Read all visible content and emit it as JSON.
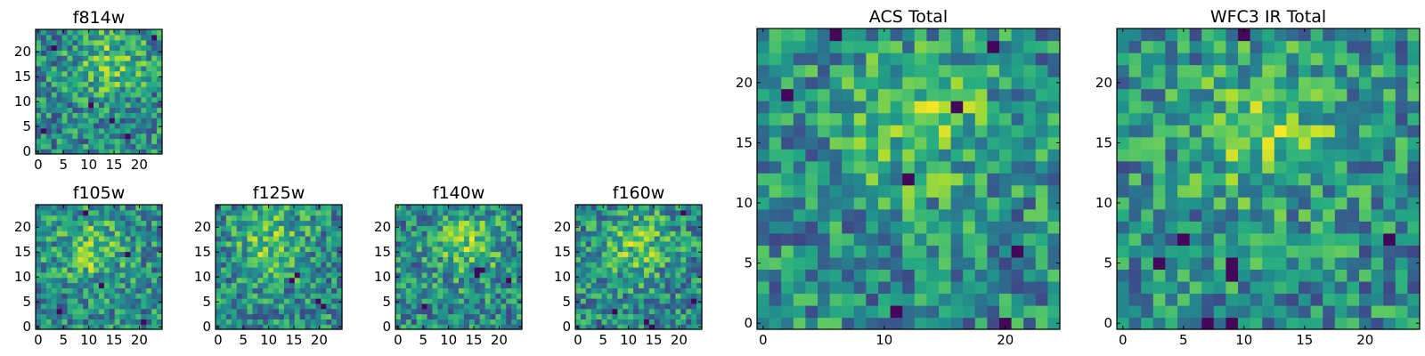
{
  "figure": {
    "colormap": "viridis",
    "colors": {
      "viridis_stops": [
        "#440154",
        "#472d7b",
        "#3b528b",
        "#2c728e",
        "#21918c",
        "#28ae80",
        "#5ec962",
        "#addc30",
        "#fde725"
      ]
    }
  },
  "chart_data": [
    {
      "id": "f814w",
      "type": "heatmap",
      "title": "f814w",
      "grid_size": 24,
      "seed": 814,
      "x_ticks": [
        "0",
        "5",
        "10",
        "15",
        "20"
      ],
      "y_ticks": [
        "0",
        "5",
        "10",
        "15",
        "20"
      ],
      "xlim": [
        -0.5,
        24.5
      ],
      "ylim": [
        -0.5,
        24.5
      ],
      "bright_region": {
        "x": 14,
        "y": 17
      },
      "dark_pixels": [
        [
          3,
          20
        ],
        [
          14,
          6
        ],
        [
          17,
          3
        ],
        [
          22,
          22
        ],
        [
          10,
          9
        ],
        [
          1,
          4
        ]
      ]
    },
    {
      "id": "f105w",
      "type": "heatmap",
      "title": "f105w",
      "grid_size": 24,
      "seed": 105,
      "x_ticks": [
        "0",
        "5",
        "10",
        "15",
        "20"
      ],
      "y_ticks": [
        "0",
        "5",
        "10",
        "15",
        "20"
      ],
      "xlim": [
        -0.5,
        24.5
      ],
      "ylim": [
        -0.5,
        24.5
      ],
      "bright_region": {
        "x": 10,
        "y": 15
      },
      "dark_pixels": [
        [
          9,
          22
        ],
        [
          17,
          14
        ],
        [
          12,
          8
        ],
        [
          20,
          1
        ],
        [
          4,
          3
        ]
      ]
    },
    {
      "id": "f125w",
      "type": "heatmap",
      "title": "f125w",
      "grid_size": 24,
      "seed": 125,
      "x_ticks": [
        "0",
        "5",
        "10",
        "15",
        "20"
      ],
      "y_ticks": [
        "0",
        "5",
        "10",
        "15",
        "20"
      ],
      "xlim": [
        -0.5,
        24.5
      ],
      "ylim": [
        -0.5,
        24.5
      ],
      "bright_region": {
        "x": 10,
        "y": 16
      },
      "dark_pixels": [
        [
          14,
          9
        ],
        [
          19,
          5
        ],
        [
          20,
          4
        ],
        [
          15,
          10
        ]
      ]
    },
    {
      "id": "f140w",
      "type": "heatmap",
      "title": "f140w",
      "grid_size": 24,
      "seed": 140,
      "x_ticks": [
        "0",
        "5",
        "10",
        "15",
        "20"
      ],
      "y_ticks": [
        "0",
        "5",
        "10",
        "15",
        "20"
      ],
      "xlim": [
        -0.5,
        24.5
      ],
      "ylim": [
        -0.5,
        24.5
      ],
      "bright_region": {
        "x": 13,
        "y": 16
      },
      "dark_pixels": [
        [
          15,
          10
        ],
        [
          16,
          11
        ],
        [
          15,
          11
        ],
        [
          5,
          4
        ],
        [
          21,
          9
        ]
      ]
    },
    {
      "id": "f160w",
      "type": "heatmap",
      "title": "f160w",
      "grid_size": 24,
      "seed": 160,
      "x_ticks": [
        "0",
        "5",
        "10",
        "15",
        "20"
      ],
      "y_ticks": [
        "0",
        "5",
        "10",
        "15",
        "20"
      ],
      "xlim": [
        -0.5,
        24.5
      ],
      "ylim": [
        -0.5,
        24.5
      ],
      "bright_region": {
        "x": 11,
        "y": 16
      },
      "dark_pixels": [
        [
          13,
          1
        ],
        [
          14,
          0
        ],
        [
          22,
          5
        ],
        [
          20,
          22
        ],
        [
          7,
          3
        ]
      ]
    },
    {
      "id": "acs_total",
      "type": "heatmap",
      "title": "ACS Total",
      "grid_size": 25,
      "seed": 8140,
      "x_ticks": [
        "0",
        "10",
        "20"
      ],
      "y_ticks": [
        "0",
        "5",
        "10",
        "15",
        "20"
      ],
      "xlim": [
        -0.5,
        24.5
      ],
      "ylim": [
        -0.5,
        24.5
      ],
      "bright_region": {
        "x": 13,
        "y": 17
      },
      "dark_pixels": [
        [
          6,
          24
        ],
        [
          2,
          19
        ],
        [
          12,
          12
        ],
        [
          11,
          1
        ],
        [
          19,
          23
        ],
        [
          16,
          18
        ],
        [
          20,
          0
        ],
        [
          21,
          6
        ]
      ]
    },
    {
      "id": "wfc3_ir_total",
      "type": "heatmap",
      "title": "WFC3 IR Total",
      "grid_size": 25,
      "seed": 1234,
      "x_ticks": [
        "0",
        "5",
        "10",
        "15",
        "20"
      ],
      "y_ticks": [
        "0",
        "5",
        "10",
        "15",
        "20"
      ],
      "xlim": [
        -0.5,
        24.5
      ],
      "ylim": [
        -0.5,
        24.5
      ],
      "bright_region": {
        "x": 12,
        "y": 16
      },
      "dark_pixels": [
        [
          10,
          24
        ],
        [
          5,
          7
        ],
        [
          3,
          5
        ],
        [
          9,
          0
        ],
        [
          9,
          4
        ],
        [
          9,
          5
        ],
        [
          22,
          7
        ],
        [
          7,
          0
        ]
      ]
    }
  ]
}
